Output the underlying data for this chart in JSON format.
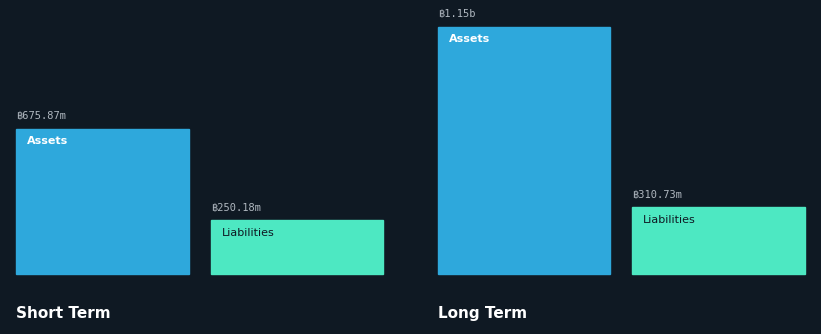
{
  "background_color": "#0f1923",
  "asset_color": "#2ea8dc",
  "liability_color": "#4de8c2",
  "label_color": "#b0b8c0",
  "inner_label_color": "#ffffff",
  "liabilities_inner_label_color": "#0f1923",
  "short_term": {
    "assets": 675.87,
    "liabilities": 250.18,
    "assets_label": "฿675.87m",
    "liabilities_label": "฿250.18m",
    "title": "Short Term"
  },
  "long_term": {
    "assets": 1150,
    "liabilities": 310.73,
    "assets_label": "฿1.15b",
    "liabilities_label": "฿310.73m",
    "title": "Long Term"
  },
  "assets_inner_label": "Assets",
  "liabilities_inner_label": "Liabilities",
  "figsize": [
    8.21,
    3.34
  ],
  "dpi": 100
}
